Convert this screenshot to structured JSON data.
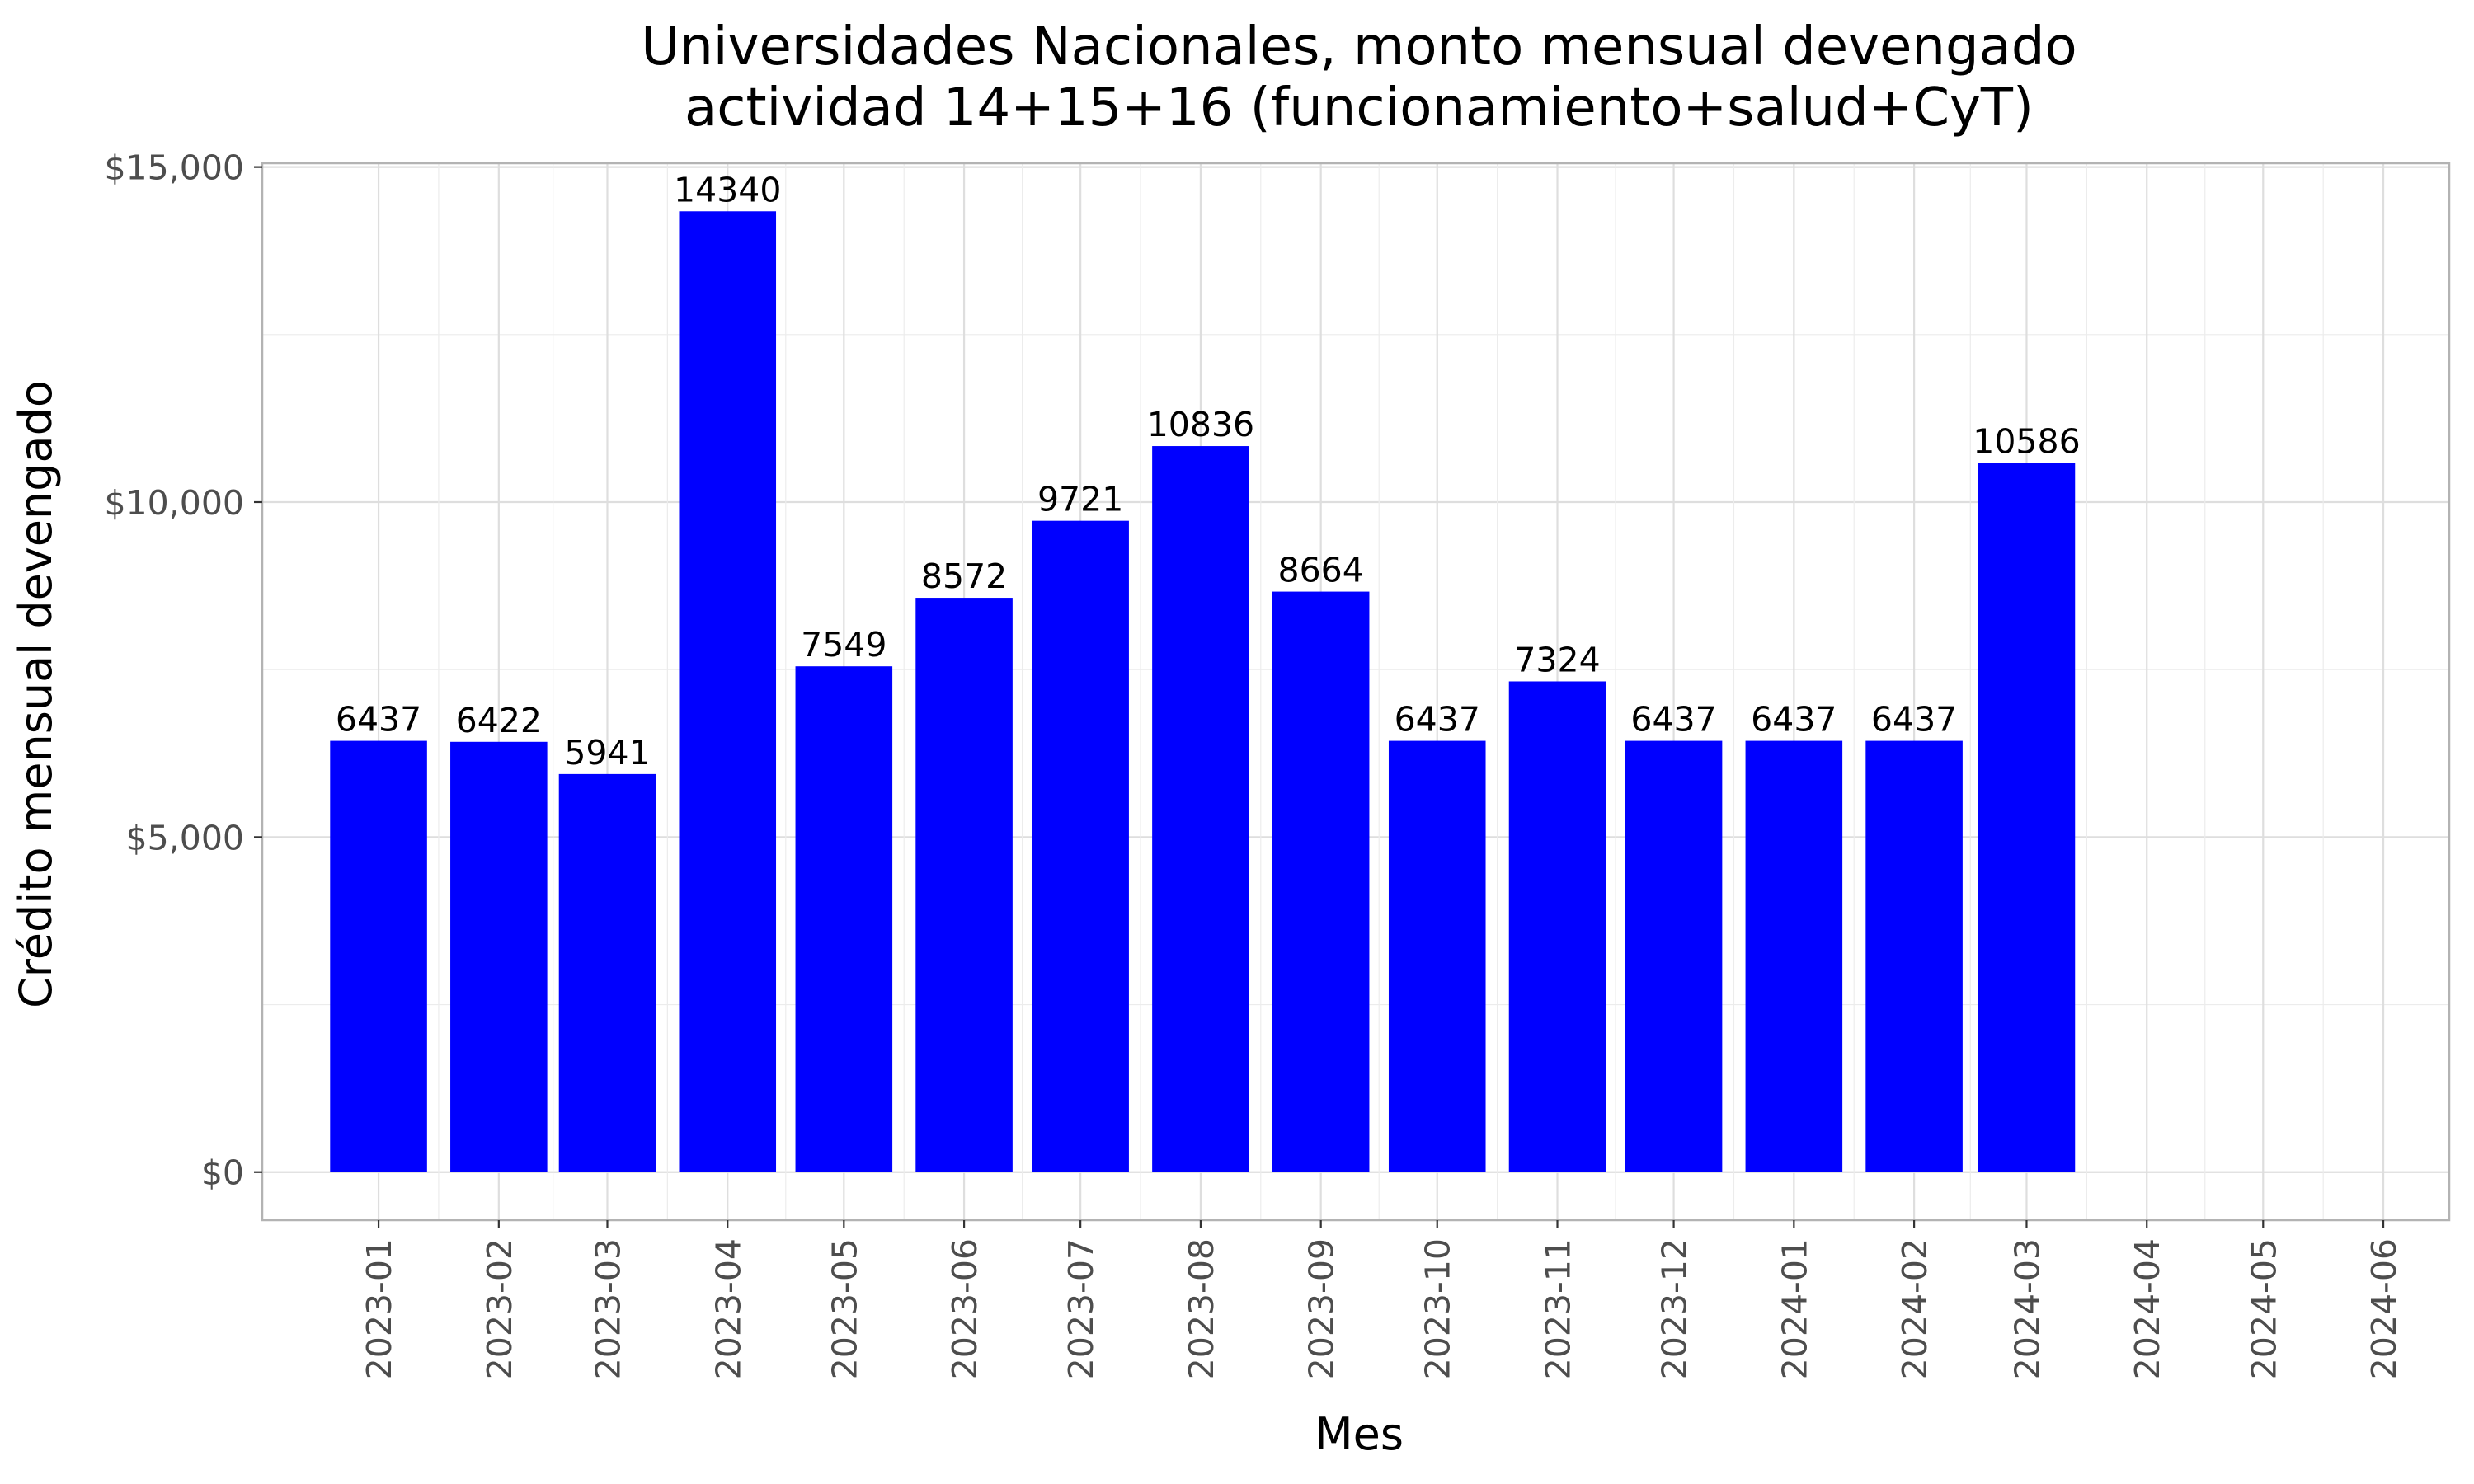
{
  "chart_data": {
    "type": "bar",
    "title": "Universidades Nacionales, monto mensual devengado",
    "subtitle": "actividad 14+15+16 (funcionamiento+salud+CyT)",
    "xlabel": "Mes",
    "ylabel": "Crédito mensual devengado",
    "categories": [
      "2023-01",
      "2023-02",
      "2023-03",
      "2023-04",
      "2023-05",
      "2023-06",
      "2023-07",
      "2023-08",
      "2023-09",
      "2023-10",
      "2023-11",
      "2023-12",
      "2024-01",
      "2024-02",
      "2024-03"
    ],
    "x_dates": [
      "2023-01-01",
      "2023-02-01",
      "2023-03-01",
      "2023-04-01",
      "2023-05-01",
      "2023-06-01",
      "2023-07-01",
      "2023-08-01",
      "2023-09-01",
      "2023-10-01",
      "2023-11-01",
      "2023-12-01",
      "2024-01-01",
      "2024-02-01",
      "2024-03-01"
    ],
    "values": [
      6437,
      6422,
      5941,
      14340,
      7549,
      8572,
      9721,
      10836,
      8664,
      6437,
      7324,
      6437,
      6437,
      6437,
      10586
    ],
    "data_labels": [
      "6437",
      "6422",
      "5941",
      "14340",
      "7549",
      "8572",
      "9721",
      "10836",
      "8664",
      "6437",
      "7324",
      "6437",
      "6437",
      "6437",
      "10586"
    ],
    "x_ticks": [
      "2023-01",
      "2023-02",
      "2023-03",
      "2023-04",
      "2023-05",
      "2023-06",
      "2023-07",
      "2023-08",
      "2023-09",
      "2023-10",
      "2023-11",
      "2023-12",
      "2024-01",
      "2024-02",
      "2024-03",
      "2024-04",
      "2024-05",
      "2024-06"
    ],
    "xlim": [
      "2022-12-02",
      "2024-06-18"
    ],
    "y_ticks": [
      0,
      5000,
      10000,
      15000
    ],
    "y_tick_labels": [
      "$0",
      "$5,000",
      "$10,000",
      "$15,000"
    ],
    "ylim": [
      -717,
      15057
    ],
    "bar_color": "#0000ff",
    "grid": true
  }
}
